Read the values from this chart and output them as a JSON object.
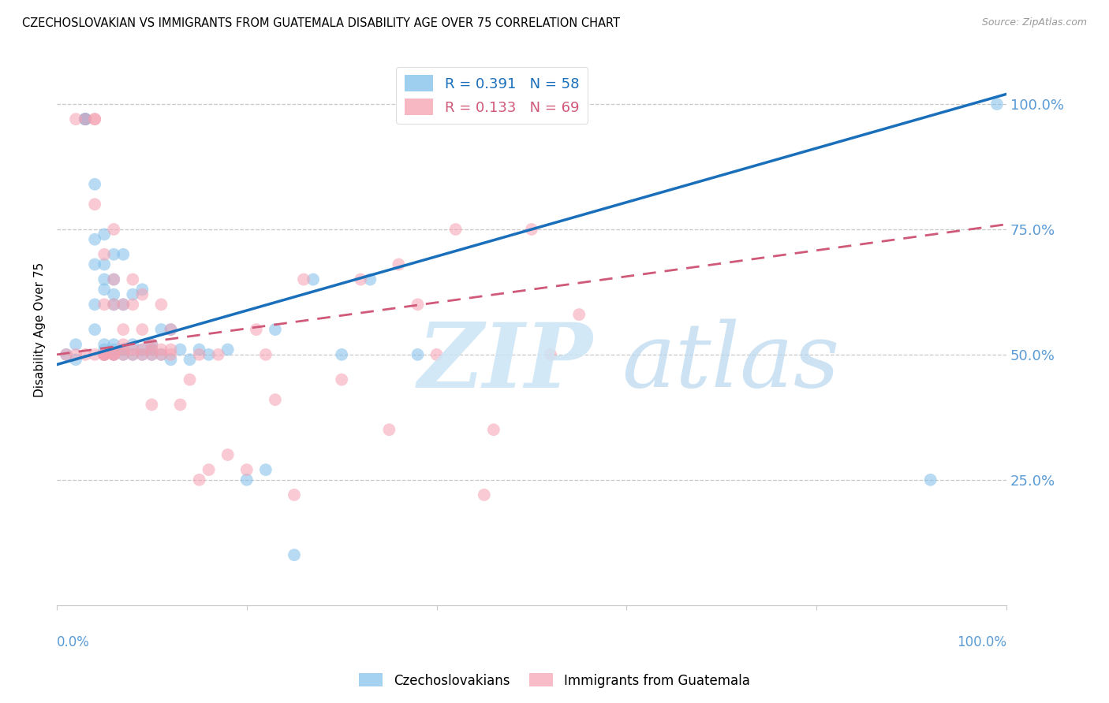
{
  "title": "CZECHOSLOVAKIAN VS IMMIGRANTS FROM GUATEMALA DISABILITY AGE OVER 75 CORRELATION CHART",
  "source": "Source: ZipAtlas.com",
  "ylabel": "Disability Age Over 75",
  "axis_label_color": "#5b9bd5",
  "grid_color": "#c8c8c8",
  "blue_scatter_color": "#7fbfea",
  "pink_scatter_color": "#f5a0b0",
  "blue_line_color": "#1a6fba",
  "pink_line_color": "#d05878",
  "watermark_zip_color": "#d0e8f8",
  "watermark_atlas_color": "#b8d8f0",
  "blue_label": "R = 0.391   N = 58",
  "pink_label": "R = 0.133   N = 69",
  "legend_blue_text_color": "#1a6fba",
  "legend_pink_text_color": "#d05878",
  "bottom_legend_blue": "Czechoslovakians",
  "bottom_legend_pink": "Immigrants from Guatemala",
  "blue_x": [
    0.01,
    0.02,
    0.02,
    0.03,
    0.03,
    0.03,
    0.03,
    0.04,
    0.04,
    0.04,
    0.04,
    0.04,
    0.05,
    0.05,
    0.05,
    0.05,
    0.05,
    0.05,
    0.05,
    0.06,
    0.06,
    0.06,
    0.06,
    0.06,
    0.06,
    0.06,
    0.07,
    0.07,
    0.07,
    0.07,
    0.08,
    0.08,
    0.08,
    0.09,
    0.09,
    0.09,
    0.1,
    0.1,
    0.1,
    0.11,
    0.11,
    0.12,
    0.12,
    0.13,
    0.14,
    0.15,
    0.16,
    0.18,
    0.2,
    0.22,
    0.23,
    0.25,
    0.27,
    0.3,
    0.33,
    0.38,
    0.92,
    0.99
  ],
  "blue_y": [
    0.5,
    0.49,
    0.52,
    0.97,
    0.97,
    0.97,
    0.97,
    0.73,
    0.84,
    0.6,
    0.55,
    0.68,
    0.5,
    0.51,
    0.52,
    0.63,
    0.65,
    0.68,
    0.74,
    0.5,
    0.51,
    0.52,
    0.6,
    0.62,
    0.65,
    0.7,
    0.5,
    0.51,
    0.6,
    0.7,
    0.5,
    0.52,
    0.62,
    0.5,
    0.51,
    0.63,
    0.5,
    0.51,
    0.52,
    0.5,
    0.55,
    0.49,
    0.55,
    0.51,
    0.49,
    0.51,
    0.5,
    0.51,
    0.25,
    0.27,
    0.55,
    0.1,
    0.65,
    0.5,
    0.65,
    0.5,
    0.25,
    1.0
  ],
  "pink_x": [
    0.01,
    0.02,
    0.02,
    0.03,
    0.03,
    0.04,
    0.04,
    0.04,
    0.04,
    0.05,
    0.05,
    0.05,
    0.05,
    0.05,
    0.05,
    0.06,
    0.06,
    0.06,
    0.06,
    0.06,
    0.06,
    0.07,
    0.07,
    0.07,
    0.07,
    0.07,
    0.08,
    0.08,
    0.08,
    0.08,
    0.09,
    0.09,
    0.09,
    0.09,
    0.1,
    0.1,
    0.1,
    0.1,
    0.11,
    0.11,
    0.11,
    0.12,
    0.12,
    0.12,
    0.13,
    0.14,
    0.15,
    0.15,
    0.16,
    0.17,
    0.18,
    0.2,
    0.21,
    0.22,
    0.23,
    0.25,
    0.26,
    0.3,
    0.32,
    0.35,
    0.36,
    0.38,
    0.4,
    0.42,
    0.45,
    0.46,
    0.5,
    0.52,
    0.55
  ],
  "pink_y": [
    0.5,
    0.5,
    0.97,
    0.5,
    0.97,
    0.97,
    0.97,
    0.8,
    0.5,
    0.5,
    0.5,
    0.5,
    0.5,
    0.6,
    0.7,
    0.5,
    0.5,
    0.5,
    0.6,
    0.65,
    0.75,
    0.5,
    0.51,
    0.52,
    0.55,
    0.6,
    0.5,
    0.51,
    0.6,
    0.65,
    0.5,
    0.51,
    0.55,
    0.62,
    0.5,
    0.51,
    0.52,
    0.4,
    0.5,
    0.51,
    0.6,
    0.5,
    0.51,
    0.55,
    0.4,
    0.45,
    0.5,
    0.25,
    0.27,
    0.5,
    0.3,
    0.27,
    0.55,
    0.5,
    0.41,
    0.22,
    0.65,
    0.45,
    0.65,
    0.35,
    0.68,
    0.6,
    0.5,
    0.75,
    0.22,
    0.35,
    0.75,
    0.5,
    0.58
  ],
  "blue_line_x0": 0.0,
  "blue_line_y0": 0.48,
  "blue_line_x1": 1.0,
  "blue_line_y1": 1.02,
  "pink_line_x0": 0.0,
  "pink_line_y0": 0.5,
  "pink_line_x1": 1.0,
  "pink_line_y1": 0.76,
  "xlim": [
    0.0,
    1.0
  ],
  "ylim": [
    0.0,
    1.1
  ],
  "yticks": [
    0.25,
    0.5,
    0.75,
    1.0
  ],
  "ytick_labels": [
    "25.0%",
    "50.0%",
    "75.0%",
    "100.0%"
  ]
}
